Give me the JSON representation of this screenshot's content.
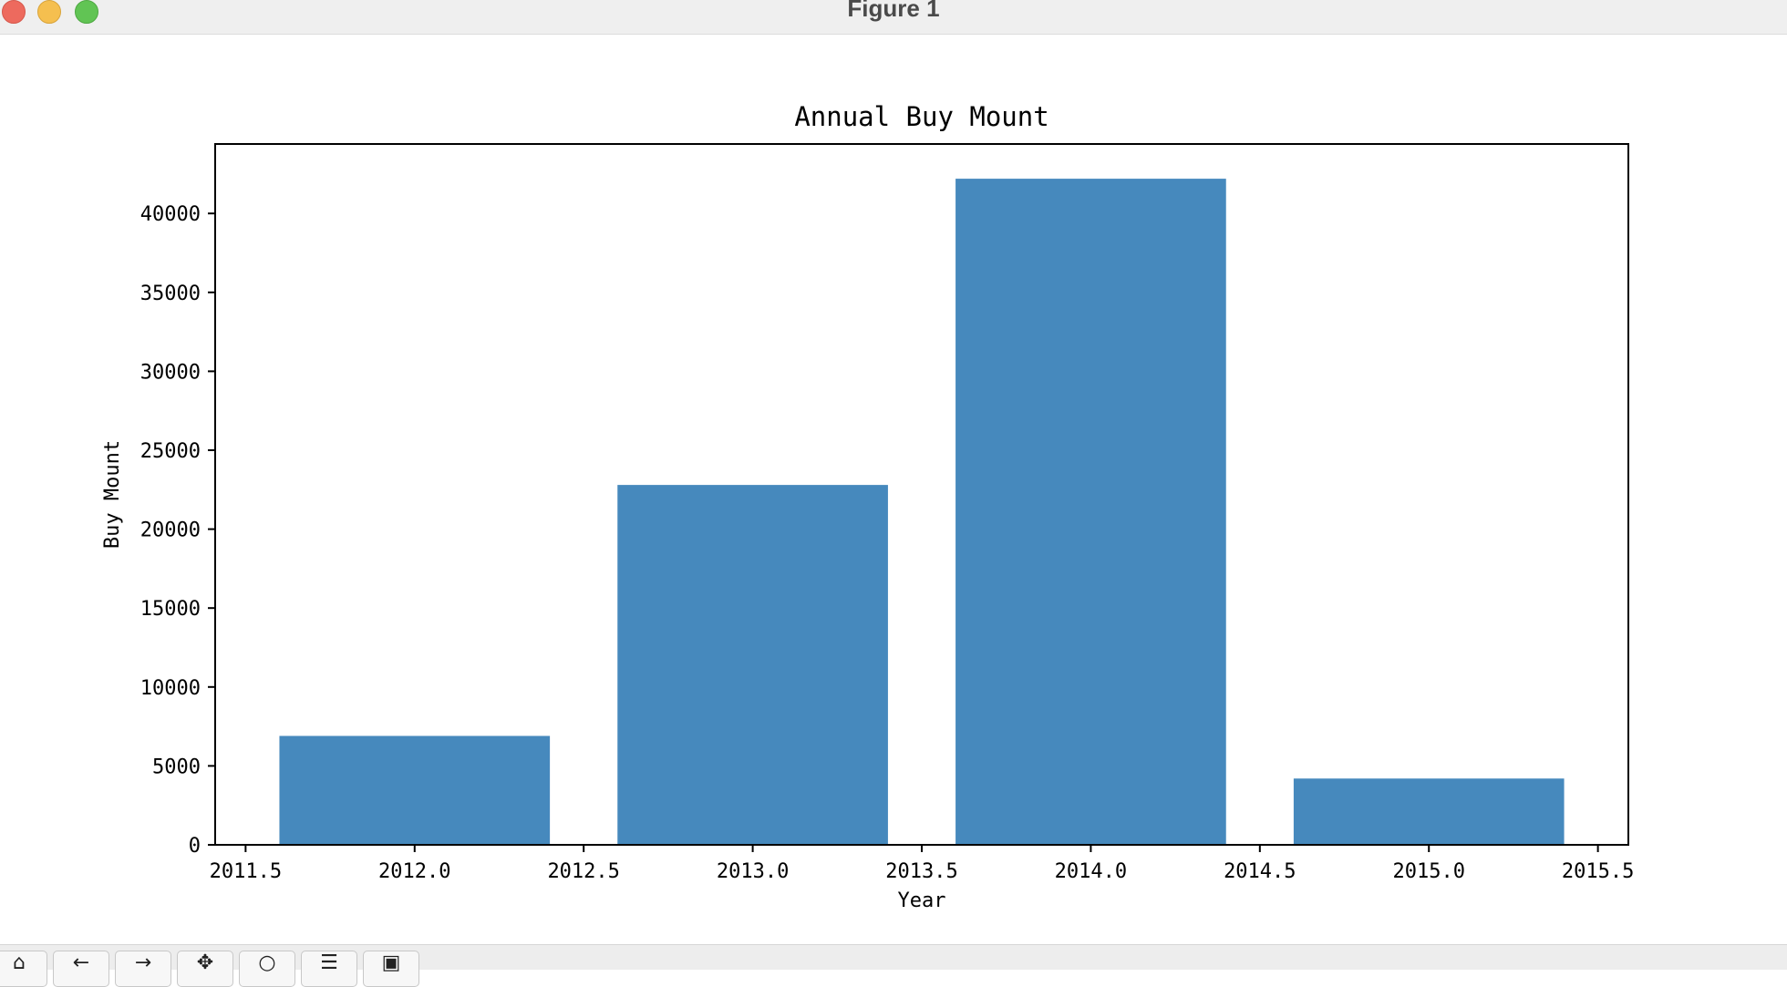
{
  "window": {
    "title": "Figure 1"
  },
  "toolbar": {
    "buttons": [
      {
        "name": "home-button",
        "icon": "home-icon",
        "glyph": "⌂"
      },
      {
        "name": "back-button",
        "icon": "arrow-left-icon",
        "glyph": "←"
      },
      {
        "name": "forward-button",
        "icon": "arrow-right-icon",
        "glyph": "→"
      },
      {
        "name": "pan-button",
        "icon": "move-icon",
        "glyph": "✥"
      },
      {
        "name": "zoom-button",
        "icon": "zoom-icon",
        "glyph": "○"
      },
      {
        "name": "configure-subplots-button",
        "icon": "sliders-icon",
        "glyph": "☰"
      },
      {
        "name": "save-button",
        "icon": "save-icon",
        "glyph": "▣"
      }
    ]
  },
  "chart_data": {
    "type": "bar",
    "title": "Annual Buy Mount",
    "xlabel": "Year",
    "ylabel": "Buy Mount",
    "x": [
      2012,
      2013,
      2014,
      2015
    ],
    "values": [
      6900,
      22800,
      42200,
      4200
    ],
    "bar_width": 0.8,
    "xlim": [
      2011.41,
      2015.59
    ],
    "ylim": [
      0,
      44400
    ],
    "xticks": [
      2011.5,
      2012.0,
      2012.5,
      2013.0,
      2013.5,
      2014.0,
      2014.5,
      2015.0,
      2015.5
    ],
    "xtick_labels": [
      "2011.5",
      "2012.0",
      "2012.5",
      "2013.0",
      "2013.5",
      "2014.0",
      "2014.5",
      "2015.0",
      "2015.5"
    ],
    "yticks": [
      0,
      5000,
      10000,
      15000,
      20000,
      25000,
      30000,
      35000,
      40000
    ],
    "ytick_labels": [
      "0",
      "5000",
      "10000",
      "15000",
      "20000",
      "25000",
      "30000",
      "35000",
      "40000"
    ],
    "bar_color": "#4689bd",
    "grid": false,
    "legend": "none"
  }
}
